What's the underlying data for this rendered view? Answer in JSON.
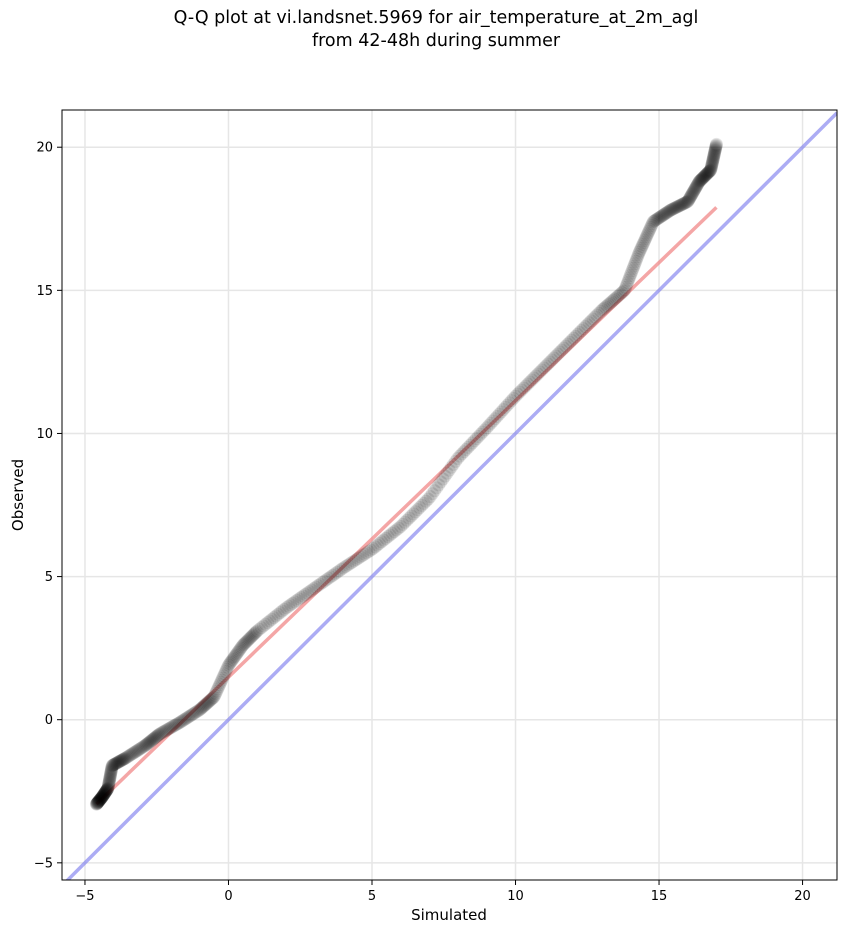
{
  "chart_data": {
    "type": "scatter",
    "title": "Q-Q plot at vi.landsnet.5969 for air_temperature_at_2m_agl",
    "subtitle": "from 42-48h during summer",
    "xlabel": "Simulated",
    "ylabel": "Observed",
    "xlim": [
      -5.8,
      21.2
    ],
    "ylim": [
      -5.6,
      21.3
    ],
    "xticks": [
      -5,
      0,
      5,
      10,
      15,
      20
    ],
    "yticks": [
      -5,
      0,
      5,
      10,
      15,
      20
    ],
    "xtick_labels": [
      "−5",
      "0",
      "5",
      "10",
      "15",
      "20"
    ],
    "ytick_labels": [
      "−5",
      "0",
      "5",
      "10",
      "15",
      "20"
    ],
    "grid": true,
    "colors": {
      "points": "#000000",
      "fit_line": "#f08080",
      "identity_line": "#8080ee",
      "grid": "#e6e6e6"
    },
    "quantile_anchors": [
      [
        -4.6,
        -2.95
      ],
      [
        -4.4,
        -2.7
      ],
      [
        -4.2,
        -2.4
      ],
      [
        -4.05,
        -1.6
      ],
      [
        -3.6,
        -1.35
      ],
      [
        -2.9,
        -0.9
      ],
      [
        -2.4,
        -0.5
      ],
      [
        -1.7,
        -0.1
      ],
      [
        -1.0,
        0.35
      ],
      [
        -0.5,
        0.8
      ],
      [
        0.0,
        1.9
      ],
      [
        0.5,
        2.6
      ],
      [
        1.0,
        3.1
      ],
      [
        2.0,
        3.9
      ],
      [
        3.0,
        4.6
      ],
      [
        4.0,
        5.3
      ],
      [
        5.0,
        5.95
      ],
      [
        6.0,
        6.75
      ],
      [
        7.0,
        7.75
      ],
      [
        8.0,
        9.15
      ],
      [
        9.0,
        10.2
      ],
      [
        10.0,
        11.3
      ],
      [
        11.0,
        12.3
      ],
      [
        12.0,
        13.3
      ],
      [
        13.0,
        14.3
      ],
      [
        13.8,
        15.0
      ],
      [
        14.3,
        16.3
      ],
      [
        14.8,
        17.4
      ],
      [
        15.4,
        17.8
      ],
      [
        16.0,
        18.1
      ],
      [
        16.4,
        18.8
      ],
      [
        16.8,
        19.2
      ],
      [
        17.0,
        20.1
      ]
    ],
    "point_count": 520,
    "series": [
      {
        "name": "",
        "kind": "fit_line",
        "x": [
          -4.6,
          17.0
        ],
        "y": [
          -2.95,
          17.9
        ]
      },
      {
        "name": "",
        "kind": "identity_line",
        "x": [
          -5.8,
          21.2
        ],
        "y": [
          -5.8,
          21.2
        ]
      }
    ]
  }
}
